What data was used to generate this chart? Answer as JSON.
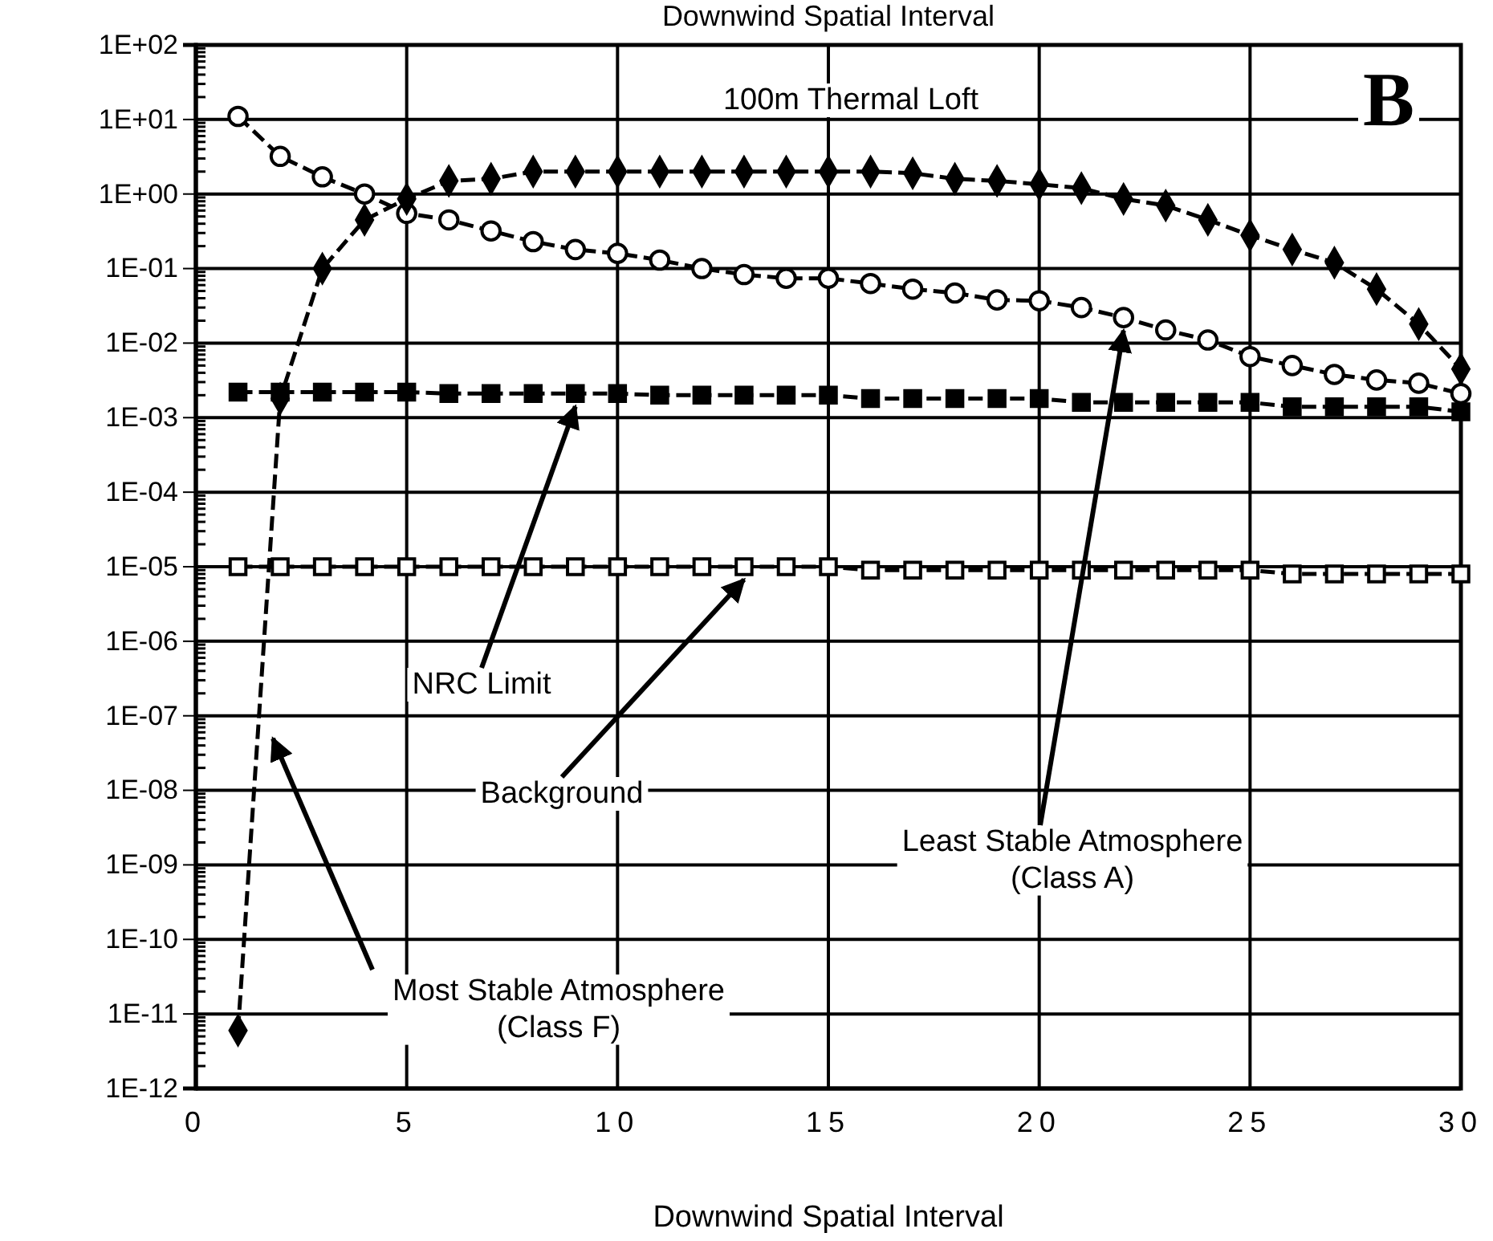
{
  "chart_data": {
    "type": "line",
    "title": "Downwind Spatial Interval",
    "xlabel": "Downwind Spatial Interval",
    "x": [
      1,
      2,
      3,
      4,
      5,
      6,
      7,
      8,
      9,
      10,
      11,
      12,
      13,
      14,
      15,
      16,
      17,
      18,
      19,
      20,
      21,
      22,
      23,
      24,
      25,
      26,
      27,
      28,
      29,
      30
    ],
    "series": [
      {
        "color": "#000000",
        "marker": "diamond",
        "values": [
          6e-12,
          0.0018,
          0.1,
          0.45,
          0.86,
          1.5,
          1.6,
          2.0,
          2.0,
          2.0,
          2.0,
          2.0,
          2.0,
          2.0,
          2.0,
          2.0,
          1.9,
          1.6,
          1.5,
          1.35,
          1.2,
          0.86,
          0.7,
          0.45,
          0.28,
          0.18,
          0.12,
          0.053,
          0.018,
          0.0045
        ]
      },
      {
        "color": "#000000",
        "marker": "circle",
        "values": [
          11,
          3.2,
          1.7,
          1.0,
          0.55,
          0.45,
          0.32,
          0.23,
          0.18,
          0.16,
          0.13,
          0.1,
          0.083,
          0.074,
          0.074,
          0.063,
          0.053,
          0.047,
          0.038,
          0.037,
          0.03,
          0.022,
          0.015,
          0.011,
          0.0066,
          0.005,
          0.0038,
          0.0032,
          0.0029,
          0.0021
        ]
      },
      {
        "color": "#000000",
        "marker": "square",
        "values": [
          0.0022,
          0.0022,
          0.0022,
          0.0022,
          0.0022,
          0.0021,
          0.0021,
          0.0021,
          0.0021,
          0.0021,
          0.002,
          0.002,
          0.002,
          0.002,
          0.002,
          0.0018,
          0.0018,
          0.0018,
          0.0018,
          0.0018,
          0.0016,
          0.0016,
          0.0016,
          0.0016,
          0.0016,
          0.0014,
          0.0014,
          0.0014,
          0.0014,
          0.0012
        ]
      },
      {
        "color": "#000000",
        "marker": "square",
        "values": [
          1e-05,
          1e-05,
          1e-05,
          1e-05,
          1e-05,
          1e-05,
          1e-05,
          1e-05,
          1e-05,
          1e-05,
          1e-05,
          1e-05,
          1e-05,
          1e-05,
          1e-05,
          9e-06,
          9e-06,
          9e-06,
          9e-06,
          9e-06,
          9e-06,
          9e-06,
          9e-06,
          9e-06,
          9e-06,
          8e-06,
          8e-06,
          8e-06,
          8e-06,
          8e-06
        ]
      }
    ],
    "line_style": "dashed",
    "log": "y",
    "grid": true,
    "xlim": [
      0,
      30
    ],
    "xticks": [
      0,
      5,
      10,
      15,
      20,
      25,
      30
    ],
    "ylim": [
      1e-12,
      100
    ],
    "yticks": [
      {
        "value": 100,
        "label": "1E+02"
      },
      {
        "value": 10,
        "label": "1E+01"
      },
      {
        "value": 1,
        "label": "1E+00"
      },
      {
        "value": 0.1,
        "label": "1E-01"
      },
      {
        "value": 0.01,
        "label": "1E-02"
      },
      {
        "value": 0.001,
        "label": "1E-03"
      },
      {
        "value": 0.0001,
        "label": "1E-04"
      },
      {
        "value": 1e-05,
        "label": "1E-05"
      },
      {
        "value": 1e-06,
        "label": "1E-06"
      },
      {
        "value": 1e-07,
        "label": "1E-07"
      },
      {
        "value": 1e-08,
        "label": "1E-08"
      },
      {
        "value": 1e-09,
        "label": "1E-09"
      },
      {
        "value": 1e-10,
        "label": "1E-10"
      },
      {
        "value": 1e-11,
        "label": "1E-11"
      },
      {
        "value": 1e-12,
        "label": "1E-12"
      }
    ],
    "annotations": [
      "100m Thermal Loft",
      "B",
      {
        "text": "NRC Limit",
        "x": 9,
        "y": 0.0021
      },
      {
        "text": "Background",
        "x": 13,
        "y": 1e-05
      },
      {
        "text": "Least Stable Atmosphere\n(Class A)",
        "x": 22,
        "y": 0.022
      },
      "Most Stable Atmosphere\n(Class F)"
    ]
  }
}
